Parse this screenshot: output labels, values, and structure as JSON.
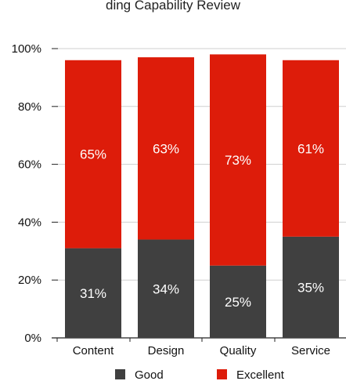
{
  "chart_data": {
    "type": "bar",
    "stacked": true,
    "title": "ding Capability Review",
    "categories": [
      "Content",
      "Design",
      "Quality",
      "Service"
    ],
    "series": [
      {
        "name": "Good",
        "values": [
          31,
          34,
          25,
          35
        ],
        "color": "#404040"
      },
      {
        "name": "Excellent",
        "values": [
          65,
          63,
          73,
          61
        ],
        "color": "#dd1c0a"
      }
    ],
    "ylim": [
      0,
      100
    ],
    "yticks": [
      "0%",
      "20%",
      "40%",
      "60%",
      "80%",
      "100%"
    ],
    "grid": true,
    "legend_position": "bottom"
  }
}
